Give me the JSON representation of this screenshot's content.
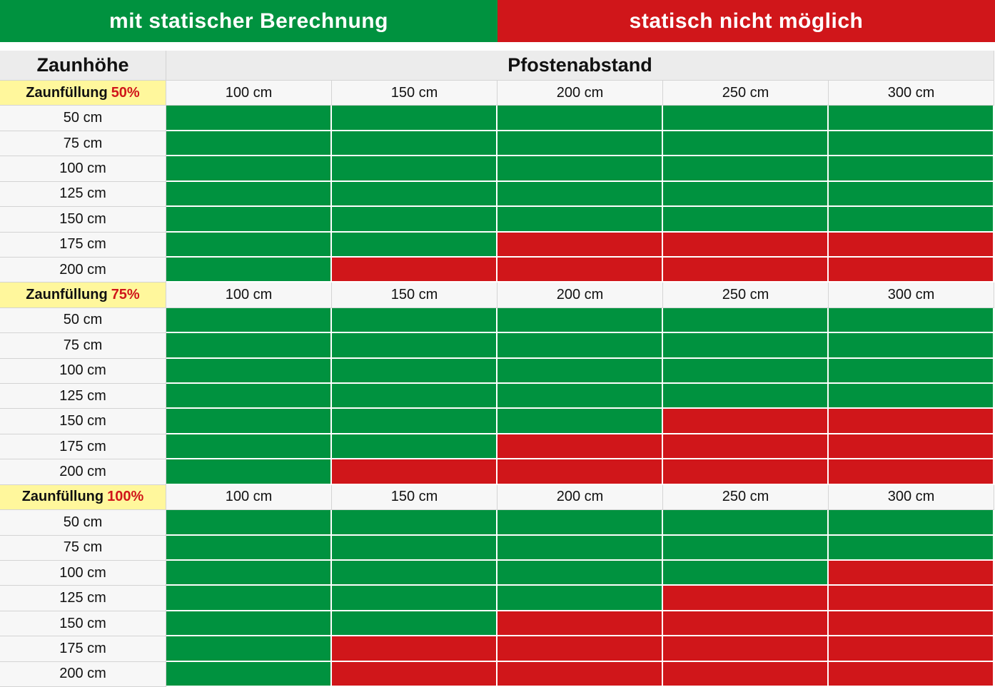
{
  "legend": {
    "ok": {
      "label": "mit statischer Berechnung",
      "color": "#00923f"
    },
    "no": {
      "label": "statisch nicht möglich",
      "color": "#d0161a"
    }
  },
  "header": {
    "row_label": "Zaunhöhe",
    "col_label": "Pfostenabstand"
  },
  "chart_data": {
    "type": "table",
    "columns": [
      "100 cm",
      "150 cm",
      "200 cm",
      "250 cm",
      "300 cm"
    ],
    "rows": [
      "50 cm",
      "75 cm",
      "100 cm",
      "125 cm",
      "150 cm",
      "175 cm",
      "200 cm"
    ],
    "sections": [
      {
        "label": "Zaunfüllung",
        "percent": "50%",
        "values": [
          [
            "ok",
            "ok",
            "ok",
            "ok",
            "ok"
          ],
          [
            "ok",
            "ok",
            "ok",
            "ok",
            "ok"
          ],
          [
            "ok",
            "ok",
            "ok",
            "ok",
            "ok"
          ],
          [
            "ok",
            "ok",
            "ok",
            "ok",
            "ok"
          ],
          [
            "ok",
            "ok",
            "ok",
            "ok",
            "ok"
          ],
          [
            "ok",
            "ok",
            "no",
            "no",
            "no"
          ],
          [
            "ok",
            "no",
            "no",
            "no",
            "no"
          ]
        ]
      },
      {
        "label": "Zaunfüllung",
        "percent": "75%",
        "values": [
          [
            "ok",
            "ok",
            "ok",
            "ok",
            "ok"
          ],
          [
            "ok",
            "ok",
            "ok",
            "ok",
            "ok"
          ],
          [
            "ok",
            "ok",
            "ok",
            "ok",
            "ok"
          ],
          [
            "ok",
            "ok",
            "ok",
            "ok",
            "ok"
          ],
          [
            "ok",
            "ok",
            "ok",
            "no",
            "no"
          ],
          [
            "ok",
            "ok",
            "no",
            "no",
            "no"
          ],
          [
            "ok",
            "no",
            "no",
            "no",
            "no"
          ]
        ]
      },
      {
        "label": "Zaunfüllung",
        "percent": "100%",
        "values": [
          [
            "ok",
            "ok",
            "ok",
            "ok",
            "ok"
          ],
          [
            "ok",
            "ok",
            "ok",
            "ok",
            "ok"
          ],
          [
            "ok",
            "ok",
            "ok",
            "ok",
            "no"
          ],
          [
            "ok",
            "ok",
            "ok",
            "no",
            "no"
          ],
          [
            "ok",
            "ok",
            "no",
            "no",
            "no"
          ],
          [
            "ok",
            "no",
            "no",
            "no",
            "no"
          ],
          [
            "ok",
            "no",
            "no",
            "no",
            "no"
          ]
        ]
      }
    ]
  }
}
